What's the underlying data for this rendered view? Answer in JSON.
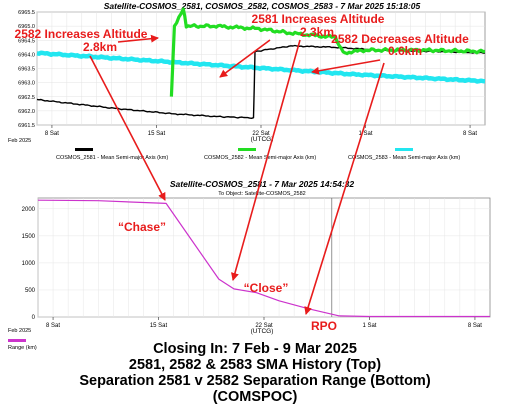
{
  "top_chart": {
    "title": "Satellite-COSMOS_2581, COSMOS_2582, COSMOS_2583 -  7 Mar 2025 15:18:05",
    "y_ticks": [
      "6965.5",
      "6965.0",
      "6964.5",
      "6964.0",
      "6963.5",
      "6963.0",
      "6962.5",
      "6962.0",
      "6961.5"
    ],
    "x_ticks": [
      "8 Sat",
      "15 Sat",
      "22 Sat",
      "1 Sat",
      "8 Sat"
    ],
    "x_unit": "(UTCG)",
    "x_month": "Feb 2025",
    "legend": [
      "COSMOS_2581 - Mean Semi-major Axis (km)",
      "COSMOS_2582 - Mean Semi-major Axis (km)",
      "COSMOS_2583 - Mean Semi-major Axis (km)"
    ],
    "colors": {
      "c2581": "#000000",
      "c2582": "#22dd22",
      "c2583": "#22e6f0",
      "annotation": "#e81c1c"
    }
  },
  "annotations": {
    "a1_line1": "2582 Increases Altitude",
    "a1_line2": "2.8km",
    "a2_line1": "2581 Increases Altitude",
    "a2_line2": "2.3km",
    "a3_line1": "2582 Decreases Altitude",
    "a3_line2": "0.6km",
    "chase": "“Chase”",
    "close": "“Close”",
    "rpo": "RPO"
  },
  "bottom_chart": {
    "title": "Satellite-COSMOS_2581 -  7 Mar 2025 14:54:32",
    "subtitle": "To Object: Satellite-COSMOS_2582",
    "y_ticks": [
      "2000",
      "1500",
      "1000",
      "500",
      "0"
    ],
    "x_ticks": [
      "8 Sat",
      "15 Sat",
      "22 Sat",
      "1 Sat",
      "8 Sat"
    ],
    "x_unit": "(UTCG)",
    "x_month": "Feb 2025",
    "legend": "Range (km)",
    "color": "#cc33cc"
  },
  "caption": {
    "line1": "Closing In:  7 Feb - 9 Mar 2025",
    "line2": "2581, 2582 & 2583 SMA History (Top)",
    "line3": "Separation 2581 v 2582 Separation Range (Bottom)",
    "line4": "(COMSPOC)"
  },
  "chart_data": [
    {
      "type": "line",
      "title": "Satellite-COSMOS_2581, COSMOS_2582, COSMOS_2583 -  7 Mar 2025 15:18:05",
      "xlabel": "(UTCG)",
      "ylabel": "",
      "x_range": [
        "2025-02-07",
        "2025-03-09"
      ],
      "ylim": [
        6961.5,
        6965.5
      ],
      "series": [
        {
          "name": "COSMOS_2581 - Mean Semi-major Axis (km)",
          "x": [
            "2025-02-07",
            "2025-02-12",
            "2025-02-16",
            "2025-02-19",
            "2025-02-21.5",
            "2025-02-21.6",
            "2025-02-24",
            "2025-02-27",
            "2025-03-02",
            "2025-03-06",
            "2025-03-09"
          ],
          "values": [
            6962.4,
            6962.1,
            6961.9,
            6961.8,
            6961.75,
            6964.1,
            6964.3,
            6964.25,
            6964.15,
            6964.1,
            6964.05
          ]
        },
        {
          "name": "COSMOS_2582 - Mean Semi-major Axis (km)",
          "x": [
            "2025-02-16",
            "2025-02-16.2",
            "2025-02-16.8",
            "2025-02-17",
            "2025-02-19",
            "2025-02-22",
            "2025-02-24",
            "2025-02-27",
            "2025-02-27.5",
            "2025-03-01",
            "2025-03-05",
            "2025-03-09"
          ],
          "values": [
            6962.5,
            6965.0,
            6965.6,
            6965.0,
            6965.0,
            6964.9,
            6964.75,
            6964.6,
            6964.05,
            6964.15,
            6964.15,
            6964.1
          ]
        },
        {
          "name": "COSMOS_2583 - Mean Semi-major Axis (km)",
          "x": [
            "2025-02-07",
            "2025-02-14",
            "2025-02-21",
            "2025-02-28",
            "2025-03-09"
          ],
          "values": [
            6964.05,
            6963.8,
            6963.55,
            6963.3,
            6963.05
          ]
        }
      ]
    },
    {
      "type": "line",
      "title": "Satellite-COSMOS_2581 -  7 Mar 2025 14:54:32",
      "subtitle": "To Object: Satellite-COSMOS_2582",
      "xlabel": "(UTCG)",
      "ylabel": "",
      "ylim": [
        0,
        2200
      ],
      "series": [
        {
          "name": "Range (km)",
          "x": [
            "2025-02-07",
            "2025-02-11",
            "2025-02-15.5",
            "2025-02-17",
            "2025-02-19",
            "2025-02-20",
            "2025-02-21.5",
            "2025-02-23",
            "2025-02-25",
            "2025-02-27",
            "2025-03-01",
            "2025-03-05",
            "2025-03-09"
          ],
          "values": [
            2160,
            2150,
            2100,
            1500,
            700,
            520,
            450,
            300,
            150,
            20,
            10,
            10,
            10
          ]
        }
      ]
    }
  ]
}
